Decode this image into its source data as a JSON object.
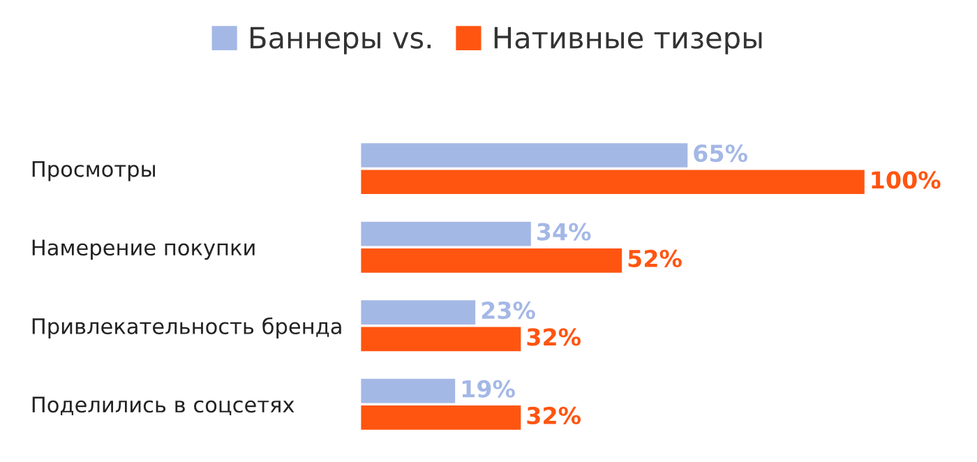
{
  "chart_data": {
    "type": "bar",
    "orientation": "horizontal",
    "categories": [
      "Просмотры",
      "Намерение покупки",
      "Привлекательность бренда",
      "Поделились в соцсетях"
    ],
    "series": [
      {
        "name": "Баннеры vs.",
        "color": "#a4b8e6",
        "values": [
          65,
          34,
          23,
          19
        ],
        "value_labels": [
          "65%",
          "34%",
          "23%",
          "19%"
        ]
      },
      {
        "name": "Нативные тизеры",
        "color": "#ff5511",
        "values": [
          100,
          52,
          32,
          32
        ],
        "value_labels": [
          "100%",
          "52%",
          "32%",
          "32%"
        ]
      }
    ],
    "legend": "top",
    "grid": false
  }
}
